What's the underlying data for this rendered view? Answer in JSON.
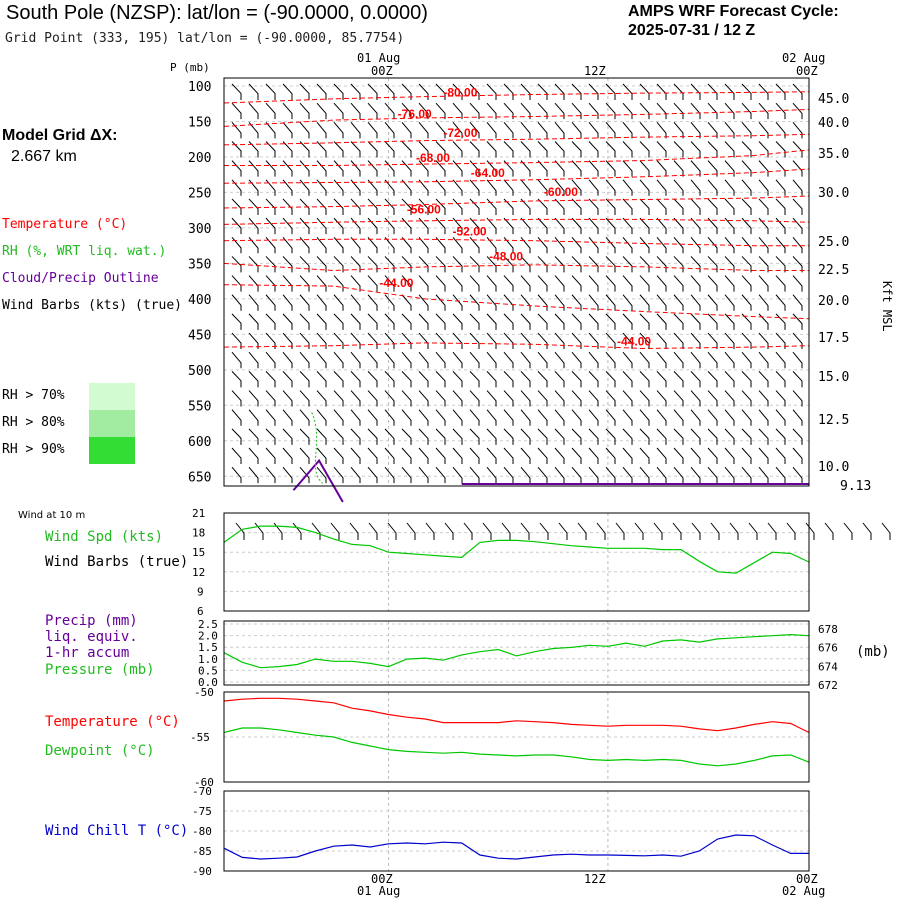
{
  "header": {
    "title": "South Pole (NZSP):  lat/lon = (-90.0000, 0.0000)",
    "subtitle": "Grid Point (333, 195) lat/lon = (-90.0000, 85.7754)",
    "cycle_label": "AMPS WRF Forecast Cycle:",
    "cycle_value": "2025-07-31 / 12  Z"
  },
  "model_grid": {
    "label": "Model Grid ΔX:",
    "value": "2.667 km"
  },
  "legend": {
    "temperature": "Temperature (°C)",
    "rh": "RH (%, WRT liq. wat.)",
    "cloud": "Cloud/Precip Outline",
    "barbs": "Wind Barbs (kts) (true)",
    "rh_bins": [
      "RH > 70%",
      "RH > 80%",
      "RH > 90%"
    ]
  },
  "colors": {
    "temperature": "#ff0000",
    "rh": "#22bb22",
    "cloud": "#660099",
    "pressure": "#00c800",
    "windchill": "#0000cc",
    "rh70": "#d2fbd2",
    "rh80": "#a2eca2",
    "rh90": "#33dd33"
  },
  "time_axis": {
    "top_date_left": "01 Aug",
    "top_date_right": "02 Aug",
    "bottom_date_left": "01 Aug",
    "bottom_date_right": "02 Aug",
    "ticks": [
      "00Z",
      "12Z",
      "00Z"
    ]
  },
  "chart_data": [
    {
      "type": "line",
      "panel": "upper-air time-height cross-section",
      "ylabel": "P (mb)",
      "right_label": "Kft MSL",
      "y_ticks": [
        "100",
        "150",
        "200",
        "250",
        "300",
        "350",
        "400",
        "450",
        "500",
        "550",
        "600",
        "650"
      ],
      "right_ticks": [
        "45.0",
        "40.0",
        "35.0",
        "30.0",
        "25.0",
        "22.5",
        "20.0",
        "17.5",
        "15.0",
        "12.5",
        "10.0",
        "9.13"
      ],
      "x_hours": [
        -9,
        23
      ],
      "isotherms": [
        {
          "value": "-80.00",
          "points": [
            [
              -9,
              124
            ],
            [
              -3,
              118
            ],
            [
              2,
              115
            ],
            [
              8,
              112
            ],
            [
              14,
              110
            ],
            [
              20,
              109
            ],
            [
              23,
              108
            ]
          ]
        },
        {
          "value": "-76.00",
          "points": [
            [
              -9,
              157
            ],
            [
              -3,
              148
            ],
            [
              2,
              145
            ],
            [
              8,
              143
            ],
            [
              14,
              140
            ],
            [
              20,
              136
            ],
            [
              23,
              133
            ]
          ]
        },
        {
          "value": "-72.00",
          "points": [
            [
              -9,
              183
            ],
            [
              -3,
              180
            ],
            [
              2,
              177
            ],
            [
              8,
              175
            ],
            [
              14,
              172
            ],
            [
              20,
              170
            ],
            [
              23,
              168
            ]
          ]
        },
        {
          "value": "-68.00",
          "points": [
            [
              -9,
              212
            ],
            [
              -3,
              212
            ],
            [
              2,
              210
            ],
            [
              8,
              208
            ],
            [
              14,
              205
            ],
            [
              20,
              198
            ],
            [
              23,
              190
            ]
          ]
        },
        {
          "value": "-64.00",
          "points": [
            [
              -9,
              237
            ],
            [
              -3,
              236
            ],
            [
              2,
              235
            ],
            [
              8,
              232
            ],
            [
              14,
              228
            ],
            [
              20,
              222
            ],
            [
              23,
              217
            ]
          ]
        },
        {
          "value": "-60.00",
          "points": [
            [
              -9,
              272
            ],
            [
              -3,
              270
            ],
            [
              2,
              267
            ],
            [
              8,
              262
            ],
            [
              14,
              260
            ],
            [
              20,
              258
            ],
            [
              23,
              255
            ]
          ]
        },
        {
          "value": "-56.00",
          "points": [
            [
              -9,
              295
            ],
            [
              -3,
              292
            ],
            [
              2,
              290
            ],
            [
              8,
              288
            ],
            [
              14,
              288
            ],
            [
              20,
              290
            ],
            [
              23,
              292
            ]
          ]
        },
        {
          "value": "-52.00",
          "points": [
            [
              -9,
              318
            ],
            [
              -3,
              316
            ],
            [
              2,
              316
            ],
            [
              8,
              318
            ],
            [
              14,
              322
            ],
            [
              20,
              325
            ],
            [
              23,
              325
            ]
          ]
        },
        {
          "value": "-48.00",
          "points": [
            [
              -9,
              350
            ],
            [
              -3,
              360
            ],
            [
              2,
              355
            ],
            [
              8,
              352
            ],
            [
              14,
              355
            ],
            [
              20,
              360
            ],
            [
              23,
              360
            ]
          ]
        },
        {
          "value": "-44.00",
          "points": [
            [
              -9,
              380
            ],
            [
              -3,
              382
            ],
            [
              2,
              400
            ],
            [
              8,
              410
            ],
            [
              14,
              418
            ],
            [
              20,
              425
            ],
            [
              23,
              428
            ]
          ]
        },
        {
          "value": "-44.00",
          "points": [
            [
              -9,
              468
            ],
            [
              -3,
              466
            ],
            [
              2,
              462
            ],
            [
              8,
              464
            ],
            [
              14,
              470
            ],
            [
              20,
              468
            ],
            [
              23,
              466
            ]
          ]
        }
      ],
      "temperature_labels": [
        {
          "text": "-80.00",
          "hour": 3.0,
          "p": 115
        },
        {
          "text": "-76.00",
          "hour": 0.5,
          "p": 145
        },
        {
          "text": "-72.00",
          "hour": 3.0,
          "p": 172
        },
        {
          "text": "-68.00",
          "hour": 1.5,
          "p": 207
        },
        {
          "text": "-64.00",
          "hour": 4.5,
          "p": 228
        },
        {
          "text": "-60.00",
          "hour": 8.5,
          "p": 255
        },
        {
          "text": "-56.00",
          "hour": 1.0,
          "p": 280
        },
        {
          "text": "-52.00",
          "hour": 3.5,
          "p": 311
        },
        {
          "text": "-48.00",
          "hour": 5.5,
          "p": 346
        },
        {
          "text": "-44.00",
          "hour": -0.5,
          "p": 383
        },
        {
          "text": "-44.00",
          "hour": 12.5,
          "p": 466
        }
      ]
    },
    {
      "type": "line",
      "panel": "10 m wind speed",
      "title": "Wind at 10 m",
      "series": [
        {
          "name": "Wind Spd (kts)",
          "x": [
            -9,
            -8,
            -7,
            -6,
            -5,
            -4,
            -3,
            -2,
            -1,
            0,
            1,
            2,
            3,
            4,
            5,
            6,
            7,
            8,
            9,
            10,
            11,
            12,
            13,
            14,
            15,
            16,
            17,
            18,
            19,
            20,
            21,
            22,
            23
          ],
          "values": [
            16.5,
            18.5,
            19,
            19,
            18.8,
            18,
            17,
            16.2,
            16,
            15,
            14.8,
            14.6,
            14.4,
            14.2,
            16.5,
            16.8,
            16.8,
            16.6,
            16.3,
            16,
            15.8,
            15.6,
            15.6,
            15.6,
            15.4,
            15.4,
            13.6,
            12,
            11.8,
            13.4,
            15,
            14.8,
            13.5
          ]
        }
      ],
      "ylim": [
        6,
        21
      ],
      "y_ticks": [
        "21",
        "18",
        "15",
        "12",
        "9",
        "6"
      ],
      "label_barbs": "Wind Barbs (true)"
    },
    {
      "type": "line",
      "panel": "precip and pressure",
      "labels": [
        "Precip (mm)",
        "liq. equiv.",
        "1-hr accum"
      ],
      "series": [
        {
          "name": "Pressure (mb)",
          "x": [
            -9,
            -8,
            -7,
            -6,
            -5,
            -4,
            -3,
            -2,
            -1,
            0,
            1,
            2,
            3,
            4,
            5,
            6,
            7,
            8,
            9,
            10,
            11,
            12,
            13,
            14,
            15,
            16,
            17,
            18,
            19,
            20,
            21,
            22,
            23
          ],
          "values": [
            675.4,
            674.5,
            674.0,
            674.1,
            674.3,
            674.8,
            674.6,
            674.6,
            674.4,
            674.1,
            674.8,
            674.9,
            674.7,
            675.2,
            675.5,
            675.7,
            675.1,
            675.5,
            675.8,
            675.9,
            676.1,
            676.0,
            676.3,
            676.0,
            676.5,
            676.6,
            676.4,
            676.7,
            676.8,
            676.9,
            677.0,
            677.1,
            677.0
          ]
        }
      ],
      "left_ticks": [
        "2.5",
        "2.0",
        "1.5",
        "1.0",
        "0.5",
        "0.0"
      ],
      "right_ticks": [
        "678",
        "676",
        "674",
        "672"
      ],
      "right_unit": "(mb)",
      "left_ylim": [
        0,
        2.5
      ],
      "right_ylim": [
        672,
        678
      ]
    },
    {
      "type": "line",
      "panel": "temperature and dewpoint",
      "series": [
        {
          "name": "Temperature (°C)",
          "x": [
            -9,
            -8,
            -7,
            -6,
            -5,
            -4,
            -3,
            -2,
            -1,
            0,
            1,
            2,
            3,
            4,
            5,
            6,
            7,
            8,
            9,
            10,
            11,
            12,
            13,
            14,
            15,
            16,
            17,
            18,
            19,
            20,
            21,
            22,
            23
          ],
          "values": [
            -51.0,
            -50.8,
            -50.7,
            -50.7,
            -50.8,
            -51.0,
            -51.2,
            -51.8,
            -52.1,
            -52.5,
            -52.8,
            -53.0,
            -53.4,
            -53.4,
            -53.4,
            -53.4,
            -53.2,
            -53.3,
            -53.4,
            -53.6,
            -53.7,
            -53.8,
            -53.7,
            -53.7,
            -53.7,
            -53.8,
            -54.1,
            -54.3,
            -54.0,
            -53.6,
            -53.3,
            -53.5,
            -54.5
          ]
        },
        {
          "name": "Dewpoint (°C)",
          "x": [
            -9,
            -8,
            -7,
            -6,
            -5,
            -4,
            -3,
            -2,
            -1,
            0,
            1,
            2,
            3,
            4,
            5,
            6,
            7,
            8,
            9,
            10,
            11,
            12,
            13,
            14,
            15,
            16,
            17,
            18,
            19,
            20,
            21,
            22,
            23
          ],
          "values": [
            -54.5,
            -54.0,
            -54.0,
            -54.2,
            -54.5,
            -54.8,
            -55.0,
            -55.6,
            -56.0,
            -56.4,
            -56.6,
            -56.7,
            -56.8,
            -56.7,
            -56.9,
            -57.0,
            -57.1,
            -57.0,
            -57.0,
            -57.2,
            -57.5,
            -57.6,
            -57.5,
            -57.6,
            -57.5,
            -57.6,
            -58.0,
            -58.2,
            -58.0,
            -57.6,
            -57.1,
            -57.0,
            -57.8
          ]
        }
      ],
      "ylim": [
        -60,
        -50
      ],
      "y_ticks": [
        "-50",
        "-55",
        "-60"
      ]
    },
    {
      "type": "line",
      "panel": "wind chill",
      "series": [
        {
          "name": "Wind Chill T (°C)",
          "x": [
            -9,
            -8,
            -7,
            -6,
            -5,
            -4,
            -3,
            -2,
            -1,
            0,
            1,
            2,
            3,
            4,
            5,
            6,
            7,
            8,
            9,
            10,
            11,
            12,
            13,
            14,
            15,
            16,
            17,
            18,
            19,
            20,
            21,
            22,
            23
          ],
          "values": [
            -84.3,
            -86.6,
            -87.0,
            -86.8,
            -86.5,
            -85.0,
            -83.8,
            -83.5,
            -84.0,
            -83.2,
            -83.0,
            -83.2,
            -82.8,
            -83.0,
            -86.0,
            -86.8,
            -87.0,
            -86.5,
            -86.0,
            -85.8,
            -86.0,
            -86.0,
            -86.1,
            -86.2,
            -86.0,
            -86.3,
            -85.0,
            -82.0,
            -81.0,
            -81.2,
            -83.5,
            -85.6,
            -85.6
          ]
        }
      ],
      "ylim": [
        -90,
        -70
      ],
      "y_ticks": [
        "-70",
        "-75",
        "-80",
        "-85",
        "-90"
      ]
    }
  ]
}
